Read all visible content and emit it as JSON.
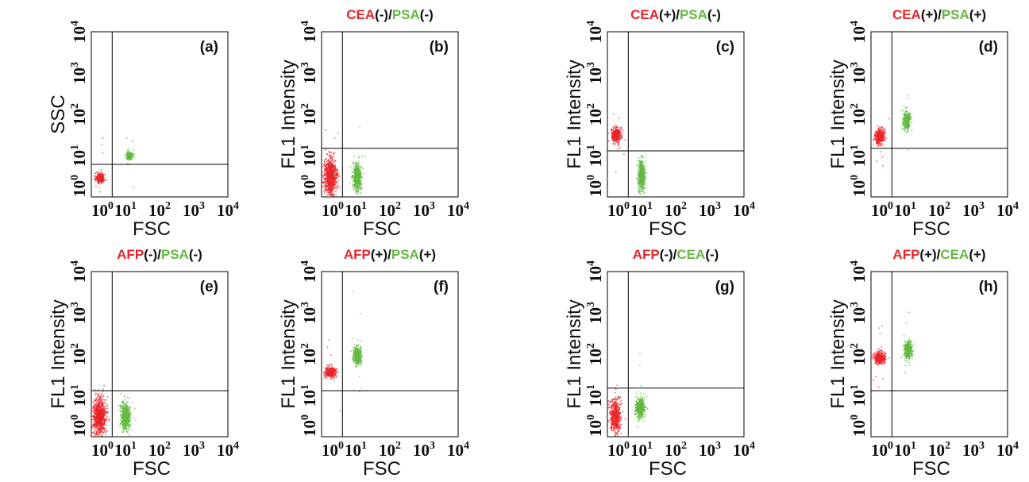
{
  "colors": {
    "red": "#e8262b",
    "green": "#63b941",
    "ink": "#111111"
  },
  "chart_data": [
    {
      "type": "scatter",
      "id": "a",
      "panel_label": "(a)",
      "title_parts": [],
      "xlabel": "FSC",
      "ylabel": "SSC",
      "x_scale": "log",
      "y_scale": "log",
      "xlim": [
        1,
        10000
      ],
      "ylim": [
        1,
        10000
      ],
      "x_tick_labels": [
        "10^0",
        "10^1",
        "10^2",
        "10^3",
        "10^4"
      ],
      "y_tick_labels": [
        "10^0",
        "10^1",
        "10^2",
        "10^3",
        "10^4"
      ],
      "gate": {
        "x": 3.5,
        "y": 5.5
      },
      "series": [
        {
          "color": "red",
          "center": [
            1.5,
            2.5
          ],
          "log_spread": [
            0.06,
            0.06
          ],
          "count": 320
        },
        {
          "color": "green",
          "center": [
            12,
            9
          ],
          "log_spread": [
            0.05,
            0.05
          ],
          "count": 240
        }
      ]
    },
    {
      "type": "scatter",
      "id": "b",
      "panel_label": "(b)",
      "title_parts": [
        {
          "text": "CEA",
          "color": "red"
        },
        {
          "text": "(-)/",
          "color": "ink"
        },
        {
          "text": "PSA",
          "color": "green"
        },
        {
          "text": "(-)",
          "color": "ink"
        }
      ],
      "xlabel": "FSC",
      "ylabel": "FL1 Intensity",
      "x_scale": "log",
      "y_scale": "log",
      "xlim": [
        1,
        10000
      ],
      "ylim": [
        1,
        10000
      ],
      "x_tick_labels": [
        "10^0",
        "10^1",
        "10^2",
        "10^3",
        "10^4"
      ],
      "y_tick_labels": [
        "10^0",
        "10^1",
        "10^2",
        "10^3",
        "10^4"
      ],
      "gate": {
        "x": 3.5,
        "y": 14
      },
      "series": [
        {
          "color": "red",
          "center": [
            1.5,
            2.6
          ],
          "log_spread": [
            0.1,
            0.22
          ],
          "count": 900
        },
        {
          "color": "green",
          "center": [
            10,
            2.6
          ],
          "log_spread": [
            0.06,
            0.17
          ],
          "count": 550
        }
      ]
    },
    {
      "type": "scatter",
      "id": "c",
      "panel_label": "(c)",
      "title_parts": [
        {
          "text": "CEA",
          "color": "red"
        },
        {
          "text": "(+)/",
          "color": "ink"
        },
        {
          "text": "PSA",
          "color": "green"
        },
        {
          "text": "(-)",
          "color": "ink"
        }
      ],
      "xlabel": "FSC",
      "ylabel": "FL1 Intensity",
      "x_scale": "log",
      "y_scale": "log",
      "xlim": [
        1,
        10000
      ],
      "ylim": [
        1,
        10000
      ],
      "x_tick_labels": [
        "10^0",
        "10^1",
        "10^2",
        "10^3",
        "10^4"
      ],
      "y_tick_labels": [
        "10^0",
        "10^1",
        "10^2",
        "10^3",
        "10^4"
      ],
      "gate": {
        "x": 3.5,
        "y": 12
      },
      "series": [
        {
          "color": "red",
          "center": [
            1.5,
            30
          ],
          "log_spread": [
            0.07,
            0.09
          ],
          "count": 420
        },
        {
          "color": "green",
          "center": [
            9,
            2.8
          ],
          "log_spread": [
            0.05,
            0.2
          ],
          "count": 500
        }
      ]
    },
    {
      "type": "scatter",
      "id": "d",
      "panel_label": "(d)",
      "title_parts": [
        {
          "text": "CEA",
          "color": "red"
        },
        {
          "text": "(+)/",
          "color": "ink"
        },
        {
          "text": "PSA",
          "color": "green"
        },
        {
          "text": "(+)",
          "color": "ink"
        }
      ],
      "xlabel": "FSC",
      "ylabel": "FL1 Intensity",
      "x_scale": "log",
      "y_scale": "log",
      "xlim": [
        1,
        10000
      ],
      "ylim": [
        1,
        10000
      ],
      "x_tick_labels": [
        "10^0",
        "10^1",
        "10^2",
        "10^3",
        "10^4"
      ],
      "y_tick_labels": [
        "10^0",
        "10^1",
        "10^2",
        "10^3",
        "10^4"
      ],
      "gate": {
        "x": 3.5,
        "y": 14
      },
      "series": [
        {
          "color": "red",
          "center": [
            1.5,
            28
          ],
          "log_spread": [
            0.07,
            0.09
          ],
          "count": 420
        },
        {
          "color": "green",
          "center": [
            10,
            70
          ],
          "log_spread": [
            0.05,
            0.1
          ],
          "count": 480
        }
      ]
    },
    {
      "type": "scatter",
      "id": "e",
      "panel_label": "(e)",
      "title_parts": [
        {
          "text": "AFP",
          "color": "red"
        },
        {
          "text": "(-)/",
          "color": "ink"
        },
        {
          "text": "PSA",
          "color": "green"
        },
        {
          "text": "(-)",
          "color": "ink"
        }
      ],
      "xlabel": "FSC",
      "ylabel": "FL1 Intensity",
      "x_scale": "log",
      "y_scale": "log",
      "xlim": [
        1,
        10000
      ],
      "ylim": [
        1,
        10000
      ],
      "x_tick_labels": [
        "10^0",
        "10^1",
        "10^2",
        "10^3",
        "10^4"
      ],
      "y_tick_labels": [
        "10^0",
        "10^1",
        "10^2",
        "10^3",
        "10^4"
      ],
      "gate": {
        "x": 3.5,
        "y": 12
      },
      "series": [
        {
          "color": "red",
          "center": [
            1.4,
            2.7
          ],
          "log_spread": [
            0.1,
            0.22
          ],
          "count": 900
        },
        {
          "color": "green",
          "center": [
            9,
            2.6
          ],
          "log_spread": [
            0.07,
            0.17
          ],
          "count": 560
        }
      ]
    },
    {
      "type": "scatter",
      "id": "f",
      "panel_label": "(f)",
      "title_parts": [
        {
          "text": "AFP",
          "color": "red"
        },
        {
          "text": "(+)/",
          "color": "ink"
        },
        {
          "text": "PSA",
          "color": "green"
        },
        {
          "text": "(+)",
          "color": "ink"
        }
      ],
      "xlabel": "FSC",
      "ylabel": "FL1 Intensity",
      "x_scale": "log",
      "y_scale": "log",
      "xlim": [
        1,
        10000
      ],
      "ylim": [
        1,
        10000
      ],
      "x_tick_labels": [
        "10^0",
        "10^1",
        "10^2",
        "10^3",
        "10^4"
      ],
      "y_tick_labels": [
        "10^0",
        "10^1",
        "10^2",
        "10^3",
        "10^4"
      ],
      "gate": {
        "x": 3.5,
        "y": 12
      },
      "series": [
        {
          "color": "red",
          "center": [
            1.5,
            35
          ],
          "log_spread": [
            0.08,
            0.06
          ],
          "count": 420
        },
        {
          "color": "green",
          "center": [
            10,
            90
          ],
          "log_spread": [
            0.06,
            0.1
          ],
          "count": 480
        }
      ]
    },
    {
      "type": "scatter",
      "id": "g",
      "panel_label": "(g)",
      "title_parts": [
        {
          "text": "AFP",
          "color": "red"
        },
        {
          "text": "(-)/",
          "color": "ink"
        },
        {
          "text": "CEA",
          "color": "green"
        },
        {
          "text": "(-)",
          "color": "ink"
        }
      ],
      "xlabel": "FSC",
      "ylabel": "FL1 Intensity",
      "x_scale": "log",
      "y_scale": "log",
      "xlim": [
        1,
        10000
      ],
      "ylim": [
        1,
        10000
      ],
      "x_tick_labels": [
        "10^0",
        "10^1",
        "10^2",
        "10^3",
        "10^4"
      ],
      "y_tick_labels": [
        "10^0",
        "10^1",
        "10^2",
        "10^3",
        "10^4"
      ],
      "gate": {
        "x": 3.5,
        "y": 14
      },
      "series": [
        {
          "color": "red",
          "center": [
            1.4,
            2.8
          ],
          "log_spread": [
            0.08,
            0.2
          ],
          "count": 560
        },
        {
          "color": "green",
          "center": [
            8,
            4.5
          ],
          "log_spread": [
            0.07,
            0.12
          ],
          "count": 480
        }
      ]
    },
    {
      "type": "scatter",
      "id": "h",
      "panel_label": "(h)",
      "title_parts": [
        {
          "text": "AFP",
          "color": "red"
        },
        {
          "text": "(+)/",
          "color": "ink"
        },
        {
          "text": "CEA",
          "color": "green"
        },
        {
          "text": "(+)",
          "color": "ink"
        }
      ],
      "xlabel": "FSC",
      "ylabel": "FL1 Intensity",
      "x_scale": "log",
      "y_scale": "log",
      "xlim": [
        1,
        10000
      ],
      "ylim": [
        1,
        10000
      ],
      "x_tick_labels": [
        "10^0",
        "10^1",
        "10^2",
        "10^3",
        "10^4"
      ],
      "y_tick_labels": [
        "10^0",
        "10^1",
        "10^2",
        "10^3",
        "10^4"
      ],
      "gate": {
        "x": 3.5,
        "y": 12
      },
      "series": [
        {
          "color": "red",
          "center": [
            1.5,
            80
          ],
          "log_spread": [
            0.08,
            0.07
          ],
          "count": 420
        },
        {
          "color": "green",
          "center": [
            11,
            130
          ],
          "log_spread": [
            0.06,
            0.1
          ],
          "count": 480
        }
      ]
    }
  ]
}
